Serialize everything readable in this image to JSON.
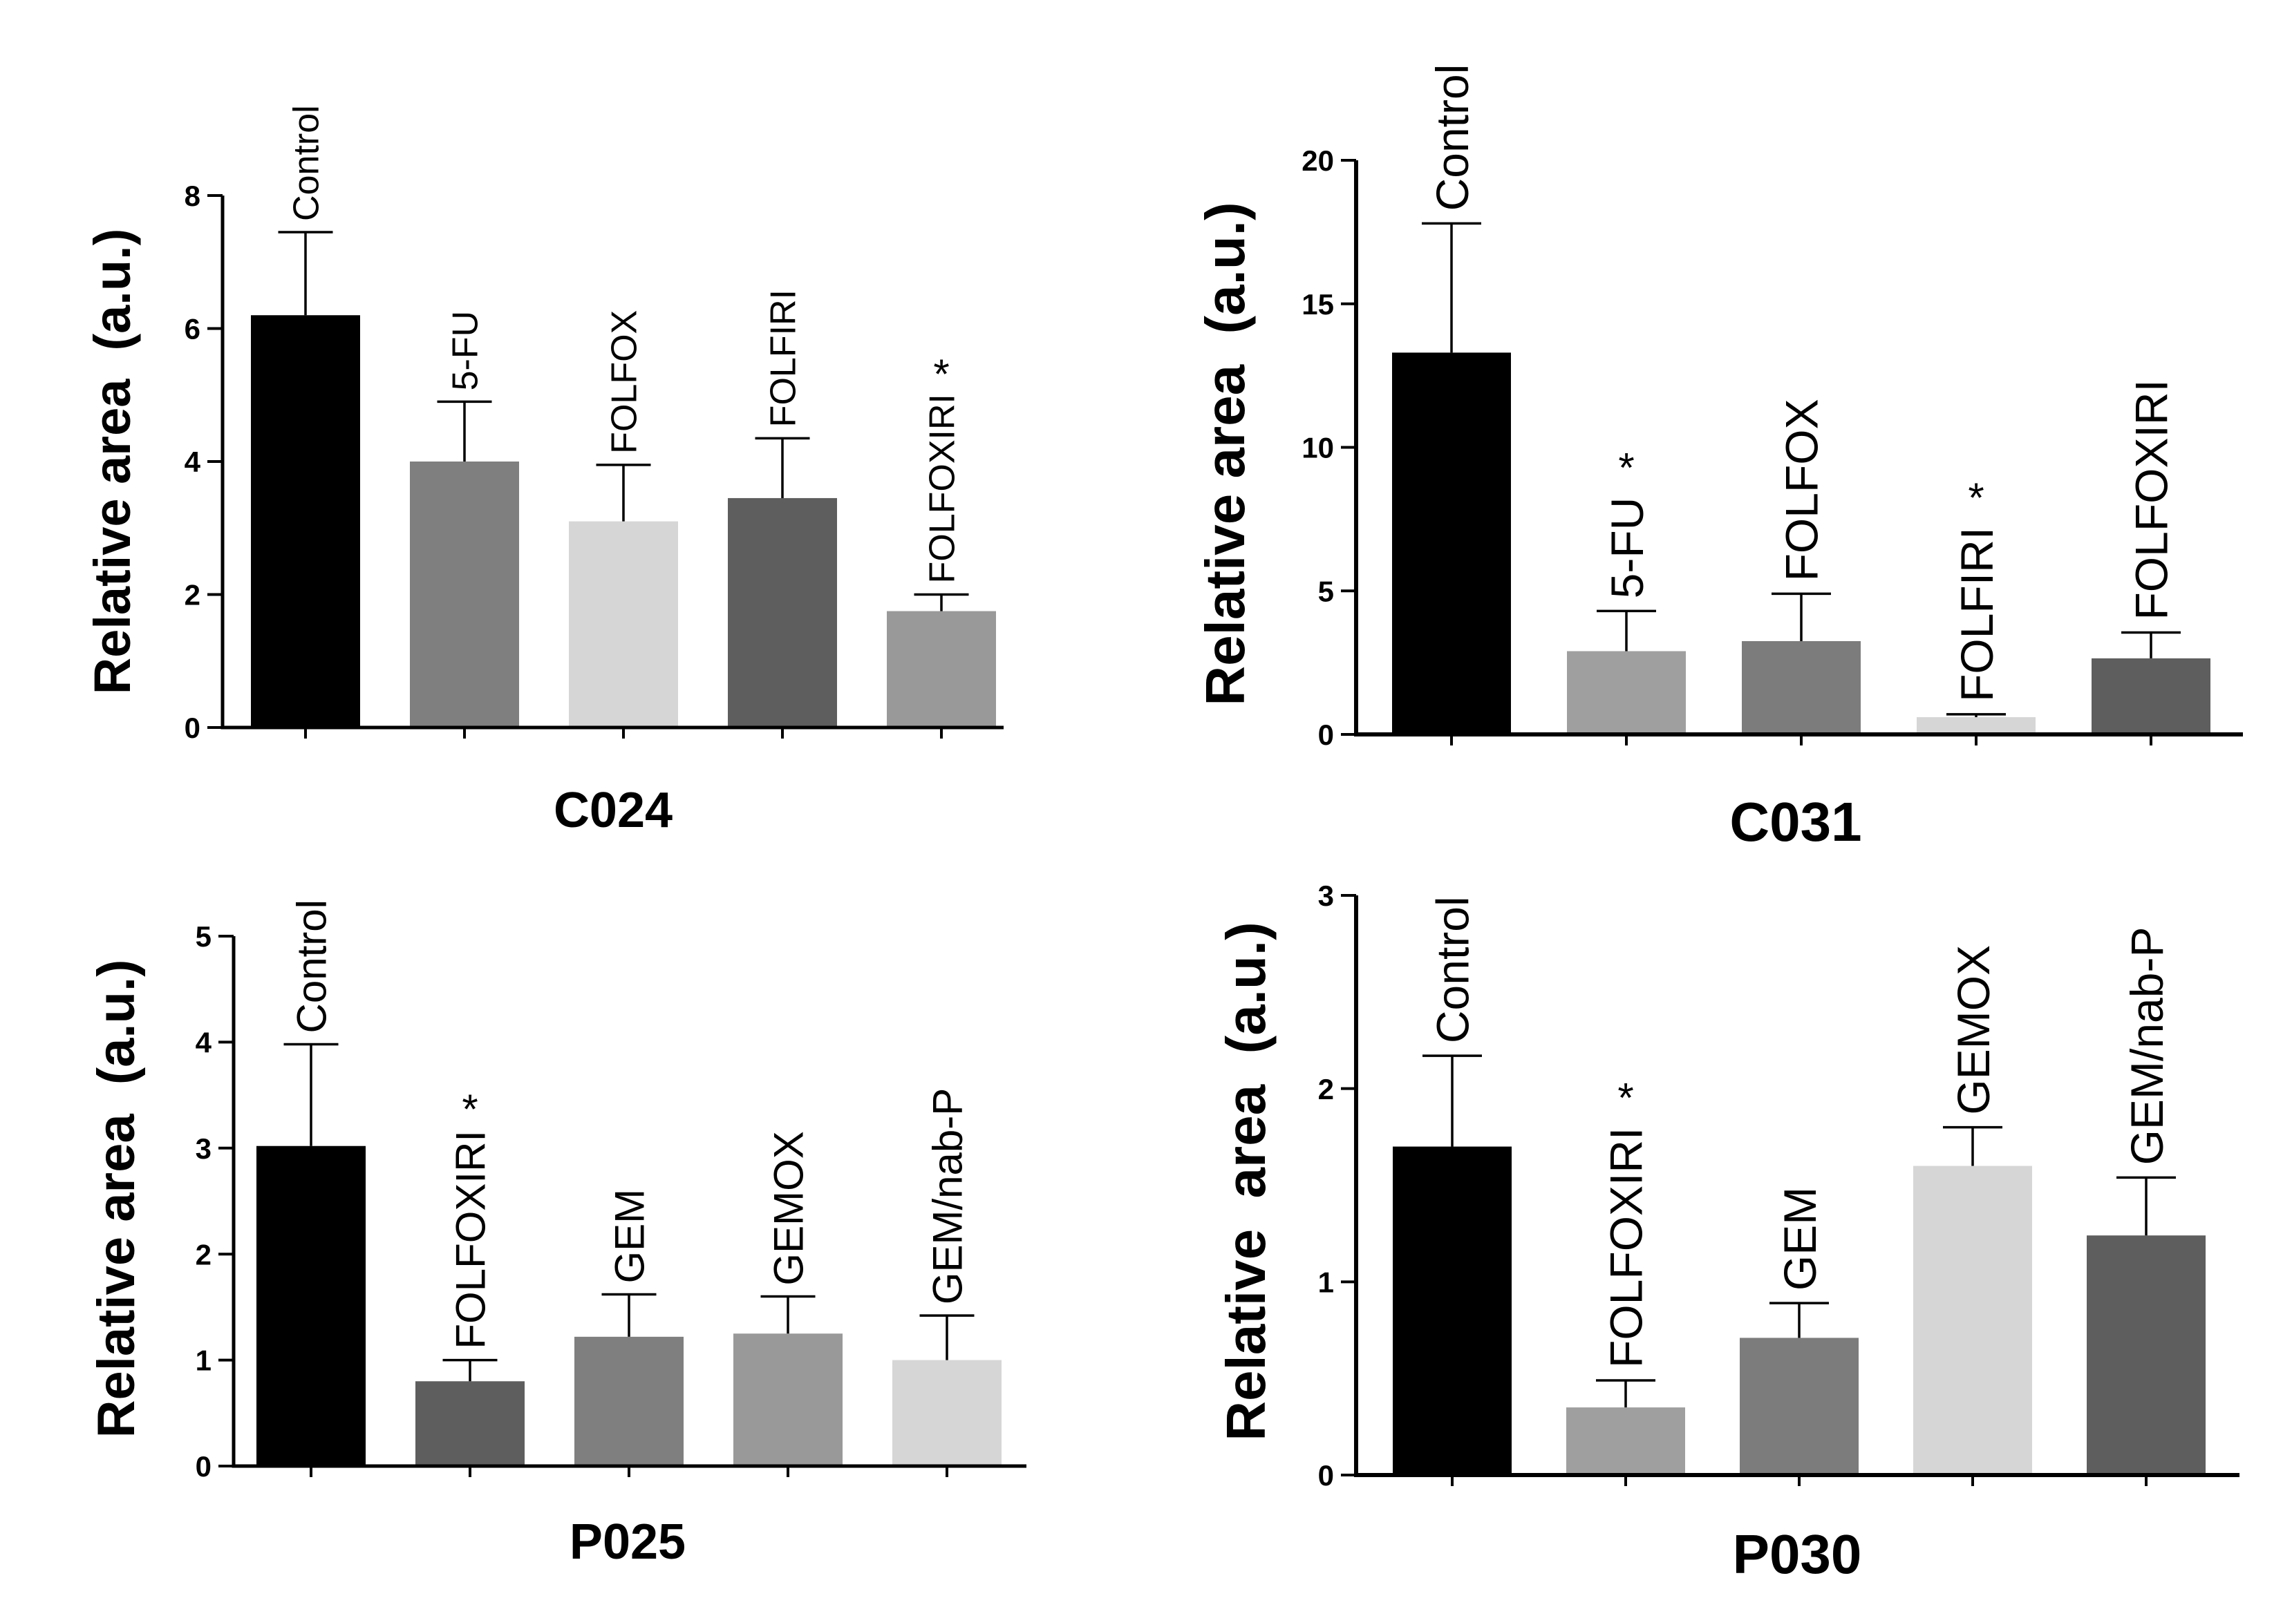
{
  "chart_data": [
    {
      "type": "bar",
      "title": "C024",
      "ylabel": "Relative area  (a.u.)",
      "xlabel": "",
      "ylim": [
        0,
        8
      ],
      "yticks": [
        0,
        2,
        4,
        6,
        8
      ],
      "categories": [
        "Control",
        "5-FU",
        "FOLFOX",
        "FOLFIRI",
        "FOLFOXIRI"
      ],
      "values": [
        6.2,
        4.0,
        3.1,
        3.45,
        1.75
      ],
      "errors": [
        1.25,
        0.9,
        0.85,
        0.9,
        0.25
      ],
      "colors": [
        "#000000",
        "#7f7f7f",
        "#d6d6d6",
        "#5e5e5e",
        "#999999"
      ],
      "significant": [
        false,
        false,
        false,
        false,
        true
      ],
      "significance_marker": "*"
    },
    {
      "type": "bar",
      "title": "C031",
      "ylabel": "Relative area  (a.u.)",
      "xlabel": "",
      "ylim": [
        0,
        20
      ],
      "yticks": [
        0,
        5,
        10,
        15,
        20
      ],
      "categories": [
        "Control",
        "5-FU",
        "FOLFOX",
        "FOLFIRI",
        "FOLFOXIRI"
      ],
      "values": [
        13.3,
        2.9,
        3.25,
        0.6,
        2.65
      ],
      "errors": [
        4.5,
        1.4,
        1.65,
        0.1,
        0.9
      ],
      "colors": [
        "#000000",
        "#9f9f9f",
        "#7c7c7c",
        "#d6d6d6",
        "#5e5e5e"
      ],
      "significant": [
        false,
        true,
        false,
        true,
        false
      ],
      "significance_marker": "*"
    },
    {
      "type": "bar",
      "title": "P025",
      "ylabel": "Relative area  (a.u.)",
      "xlabel": "",
      "ylim": [
        0,
        5
      ],
      "yticks": [
        0,
        1,
        2,
        3,
        4,
        5
      ],
      "categories": [
        "Control",
        "FOLFOXIRI",
        "GEM",
        "GEMOX",
        "GEM/nab-P"
      ],
      "values": [
        3.02,
        0.8,
        1.22,
        1.25,
        1.0
      ],
      "errors": [
        0.96,
        0.2,
        0.4,
        0.35,
        0.42
      ],
      "colors": [
        "#000000",
        "#5e5e5e",
        "#7f7f7f",
        "#999999",
        "#d6d6d6"
      ],
      "significant": [
        false,
        true,
        false,
        false,
        false
      ],
      "significance_marker": "*"
    },
    {
      "type": "bar",
      "title": "P030",
      "ylabel": "Relative  area  (a.u.)",
      "xlabel": "",
      "ylim": [
        0,
        3
      ],
      "yticks": [
        0,
        1,
        2,
        3
      ],
      "categories": [
        "Control",
        "FOLFOXIRI",
        "GEM",
        "GEMOX",
        "GEM/nab-P"
      ],
      "values": [
        1.7,
        0.35,
        0.71,
        1.6,
        1.24
      ],
      "errors": [
        0.47,
        0.14,
        0.18,
        0.2,
        0.3
      ],
      "colors": [
        "#000000",
        "#9f9f9f",
        "#7c7c7c",
        "#d6d6d6",
        "#5e5e5e"
      ],
      "significant": [
        false,
        true,
        false,
        false,
        false
      ],
      "significance_marker": "*"
    }
  ]
}
